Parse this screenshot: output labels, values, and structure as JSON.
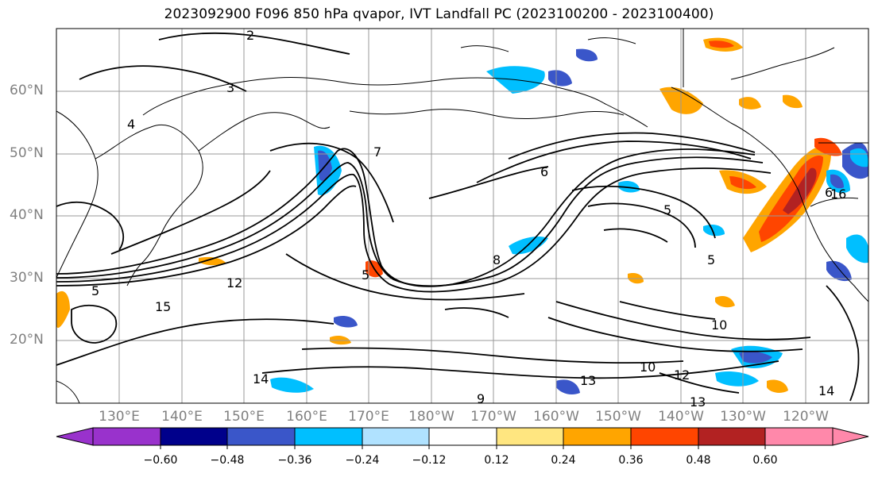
{
  "title": "2023092900 F096 850 hPa qvapor, IVT Landfall PC (2023100200 - 2023100400)",
  "lat_labels": [
    "60°N",
    "50°N",
    "40°N",
    "30°N",
    "20°N"
  ],
  "lon_labels": [
    "130°E",
    "140°E",
    "150°E",
    "160°E",
    "170°E",
    "180°W",
    "170°W",
    "160°W",
    "150°W",
    "140°W",
    "130°W",
    "120°W"
  ],
  "contour_labels": [
    "2",
    "3",
    "4",
    "5",
    "5",
    "5",
    "5",
    "6",
    "6",
    "7",
    "8",
    "9",
    "10",
    "10",
    "12",
    "12",
    "13",
    "13",
    "14",
    "14",
    "15",
    "16"
  ],
  "colorbar": {
    "colors": [
      "#9932cc",
      "#00008b",
      "#3a56c9",
      "#00bfff",
      "#b0e2ff",
      "#ffffff",
      "#ffe680",
      "#ffa500",
      "#ff4500",
      "#b22222",
      "#ff88aa"
    ],
    "tick_labels": [
      "−0.60",
      "−0.48",
      "−0.36",
      "−0.24",
      "−0.12",
      "0.12",
      "0.24",
      "0.36",
      "0.48",
      "0.60"
    ]
  },
  "colors": {
    "land_outline": "#000000",
    "contour": "#000000",
    "grid": "#999999",
    "axis_label": "#808080"
  }
}
